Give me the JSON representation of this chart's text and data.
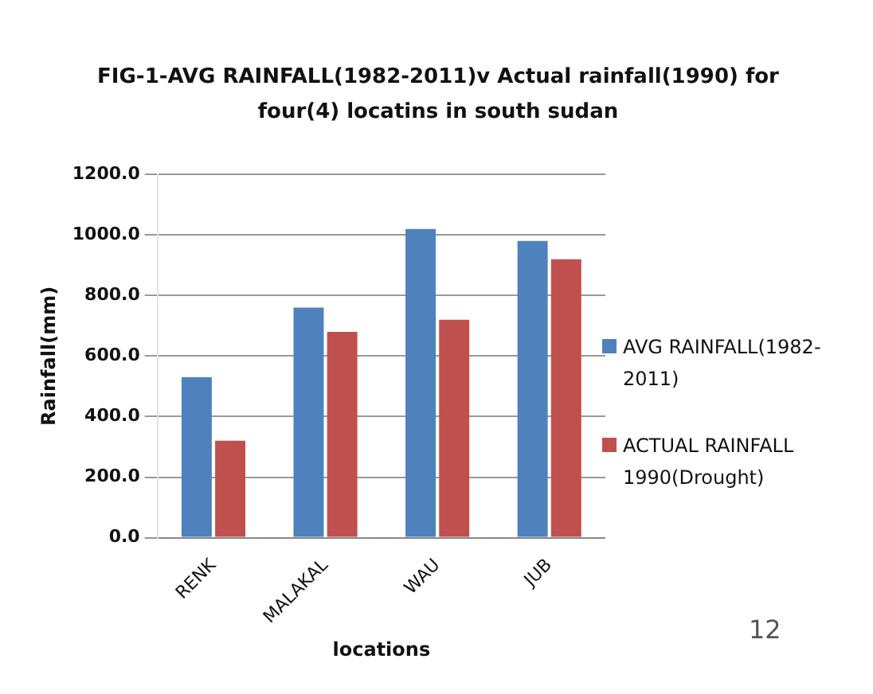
{
  "chart_data": {
    "type": "bar",
    "title": "FIG-1-AVG RAINFALL(1982-2011)v Actual rainfall(1990) for four(4) locatins in south sudan",
    "xlabel": "locations",
    "ylabel": "Rainfall(mm)",
    "categories": [
      "RENK",
      "MALAKAL",
      "WAU",
      "JUB"
    ],
    "series": [
      {
        "name": "AVG RAINFALL(1982-2011)",
        "color": "#4f81bd",
        "values": [
          530,
          760,
          1020,
          980
        ]
      },
      {
        "name": "ACTUAL RAINFALL 1990(Drought)",
        "color": "#c0504d",
        "values": [
          320,
          680,
          720,
          920
        ]
      }
    ],
    "ylim": [
      0,
      1200
    ],
    "yticks": [
      {
        "value": 0,
        "label": "0.0"
      },
      {
        "value": 200,
        "label": "200.0"
      },
      {
        "value": 400,
        "label": "400.0"
      },
      {
        "value": 600,
        "label": "600.0"
      },
      {
        "value": 800,
        "label": "800.0"
      },
      {
        "value": 1000,
        "label": "1000.0"
      },
      {
        "value": 1200,
        "label": "1200.0"
      }
    ],
    "grid": "y",
    "legend": "right",
    "annotations": [
      "12"
    ]
  }
}
